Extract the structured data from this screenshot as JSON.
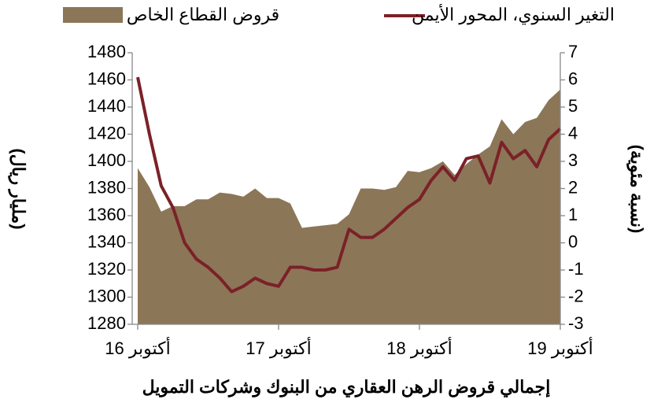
{
  "chart_data": {
    "type": "area_line",
    "title": "إجمالي قروض الرهن العقاري من البنوك وشركات التمويل",
    "ylabel": "(مليار ريال)",
    "y2label": "(نسبة مئوية)",
    "categories": [
      "أكتوبر 16",
      null,
      null,
      null,
      null,
      null,
      null,
      null,
      null,
      null,
      null,
      null,
      "أكتوبر 17",
      null,
      null,
      null,
      null,
      null,
      null,
      null,
      null,
      null,
      null,
      null,
      "أكتوبر 18",
      null,
      null,
      null,
      null,
      null,
      null,
      null,
      null,
      null,
      null,
      null,
      "أكتوبر 19"
    ],
    "series": [
      {
        "name": "قروض القطاع الخاص",
        "type": "area",
        "color": "#8c7658",
        "values": [
          1395,
          1381,
          1363,
          1367,
          1367,
          1372,
          1372,
          1377,
          1376,
          1374,
          1380,
          1373,
          1373,
          1369,
          1351,
          1352,
          1353,
          1354,
          1361,
          1380,
          1380,
          1379,
          1381,
          1393,
          1392,
          1395,
          1400,
          1390,
          1398,
          1405,
          1411,
          1431,
          1420,
          1429,
          1432,
          1445,
          1453
        ]
      },
      {
        "name": "التغير السنوي، المحور الأيمن",
        "type": "line",
        "axis": "y2",
        "color": "#7b2128",
        "values": [
          6.1,
          4.0,
          2.1,
          1.3,
          0.0,
          -0.6,
          -0.9,
          -1.3,
          -1.8,
          -1.6,
          -1.3,
          -1.5,
          -1.6,
          -0.9,
          -0.9,
          -1.0,
          -1.0,
          -0.9,
          0.5,
          0.2,
          0.2,
          0.5,
          0.9,
          1.3,
          1.6,
          2.3,
          2.8,
          2.3,
          3.1,
          3.2,
          2.2,
          3.7,
          3.1,
          3.4,
          2.8,
          3.8,
          4.2
        ]
      }
    ],
    "ylim": [
      1280,
      1480
    ],
    "yticks": [
      1280,
      1300,
      1320,
      1340,
      1360,
      1380,
      1400,
      1420,
      1440,
      1460,
      1480
    ],
    "y2lim": [
      -3,
      7
    ],
    "y2ticks": [
      -3,
      -2,
      -1,
      0,
      1,
      2,
      3,
      4,
      5,
      6,
      7
    ]
  }
}
